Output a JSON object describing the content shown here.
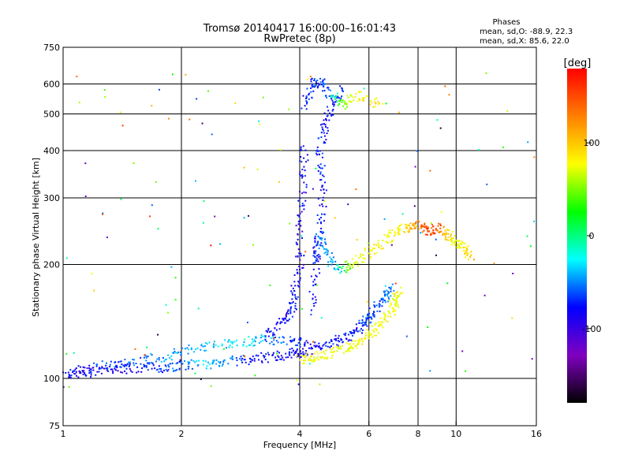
{
  "chart_data": {
    "type": "scatter",
    "title": "Tromsø 20140417 16:00:00–16:01:43",
    "subtitle": "RwPretec (8p)",
    "xlabel": "Frequency [MHz]",
    "ylabel": "Stationary phase Virtual Height [km]",
    "x_scale": "log",
    "y_scale": "log",
    "xlim": [
      1,
      16
    ],
    "ylim": [
      75,
      750
    ],
    "x_ticks": [
      1,
      2,
      4,
      6,
      8,
      10,
      16
    ],
    "y_ticks": [
      75,
      100,
      200,
      300,
      400,
      500,
      600,
      750
    ],
    "x_gridlines": [
      2,
      4,
      6,
      8,
      10
    ],
    "y_gridlines": [
      100,
      200,
      300,
      400,
      500,
      600
    ],
    "grid": true,
    "phase_stats": {
      "header": "Phases",
      "line_o": "mean, sd,O: -88.9, 22.3",
      "line_x": "mean, sd,X:  85.6, 22.0"
    },
    "colorbar": {
      "label": "[deg]",
      "range": [
        -180,
        180
      ],
      "ticks": [
        100,
        0,
        -100
      ],
      "colors": [
        "#ff0000",
        "#ff8000",
        "#ffff00",
        "#00ff00",
        "#00ffff",
        "#0000ff",
        "#8000c0",
        "#000000"
      ]
    },
    "traces": [
      {
        "x": [
          1.0,
          1.1,
          1.2,
          1.4,
          1.6,
          1.8,
          2.0,
          2.3,
          2.6,
          3.0,
          3.4,
          3.8,
          4.1,
          4.5,
          5.0,
          5.4,
          5.8,
          6.0,
          6.3,
          6.6,
          6.8
        ],
        "y": [
          102,
          104,
          104,
          106,
          107,
          107,
          108,
          109,
          111,
          112,
          114,
          116,
          118,
          122,
          126,
          131,
          138,
          145,
          155,
          165,
          175
        ],
        "phase": [
          -100,
          -110,
          -110,
          -110,
          -100,
          -90,
          -80,
          -60,
          -70,
          -100,
          -100,
          -105,
          -105,
          -100,
          -95,
          -100,
          -90,
          -90,
          -85,
          -80,
          -70
        ]
      },
      {
        "x": [
          1.1,
          1.3,
          1.5,
          1.8,
          2.1,
          2.5,
          2.9,
          3.3,
          3.8,
          4.2
        ],
        "y": [
          105,
          108,
          111,
          114,
          119,
          123,
          125,
          127,
          125,
          124
        ],
        "phase": [
          -100,
          -90,
          -80,
          -70,
          -70,
          -60,
          -55,
          -65,
          -90,
          -100
        ]
      },
      {
        "x": [
          4.0,
          4.3,
          4.7,
          5.2,
          5.6,
          6.0,
          6.4,
          6.8,
          7.0,
          7.2
        ],
        "y": [
          112,
          114,
          116,
          120,
          124,
          130,
          138,
          150,
          160,
          170
        ],
        "phase": [
          100,
          100,
          95,
          90,
          95,
          100,
          90,
          95,
          90,
          100
        ]
      },
      {
        "x": [
          3.3,
          3.6,
          3.8,
          3.9,
          4.0,
          4.0,
          4.1,
          4.1
        ],
        "y": [
          130,
          140,
          150,
          170,
          200,
          260,
          330,
          420
        ],
        "phase": [
          -100,
          -105,
          -100,
          -100,
          -110,
          -110,
          -105,
          -100
        ]
      },
      {
        "x": [
          4.3,
          4.4,
          4.5,
          4.6,
          4.5,
          4.6,
          4.8,
          5.2
        ],
        "y": [
          150,
          200,
          250,
          320,
          400,
          460,
          520,
          580
        ],
        "phase": [
          -100,
          -110,
          -100,
          -100,
          -95,
          -100,
          -100,
          -95
        ]
      },
      {
        "x": [
          4.1,
          4.3,
          4.5,
          4.8,
          5.2,
          5.7,
          6.5
        ],
        "y": [
          520,
          600,
          610,
          560,
          530,
          560,
          520
        ],
        "phase": [
          -90,
          -100,
          -90,
          -80,
          60,
          100,
          110
        ]
      },
      {
        "x": [
          4.4,
          4.5,
          4.7,
          5.0,
          5.5,
          6.0,
          6.5
        ],
        "y": [
          200,
          240,
          210,
          195,
          200,
          215,
          225
        ],
        "phase": [
          -90,
          -80,
          -70,
          -60,
          90,
          95,
          100
        ]
      },
      {
        "x": [
          6.6,
          7.0,
          7.5,
          8.0,
          8.5,
          9.0,
          9.5,
          10.0,
          10.5,
          11.0
        ],
        "y": [
          230,
          245,
          250,
          255,
          245,
          250,
          240,
          230,
          220,
          210
        ],
        "phase": [
          90,
          100,
          110,
          140,
          160,
          150,
          110,
          90,
          100,
          120
        ]
      }
    ]
  }
}
